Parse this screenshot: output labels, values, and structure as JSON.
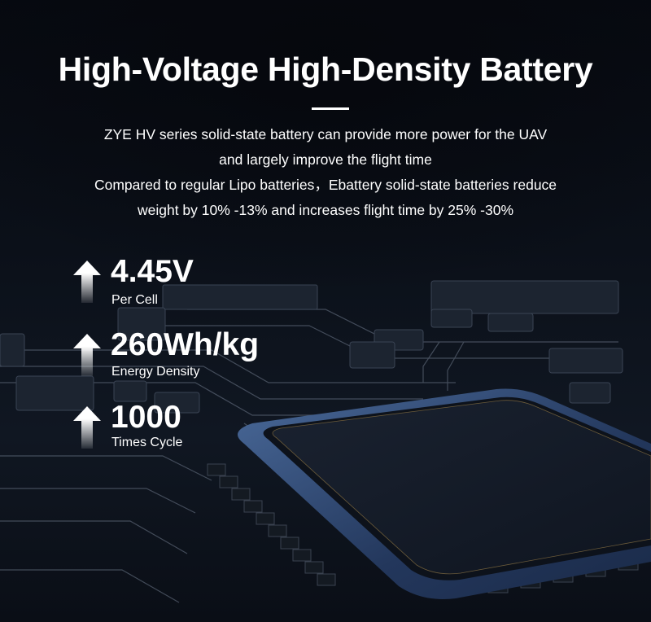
{
  "title": "High-Voltage High-Density Battery",
  "description": [
    "ZYE HV series solid-state battery can provide more power for the UAV",
    "and largely improve the flight time",
    "Compared to regular Lipo batteries，Ebattery solid-state batteries reduce",
    "weight by 10% -13% and increases flight time by 25% -30%"
  ],
  "specs": [
    {
      "value": "4.45V",
      "label": "Per Cell",
      "icon": "arrow-up-icon"
    },
    {
      "value": "260Wh/kg",
      "label": "Energy Density",
      "icon": "arrow-up-icon"
    },
    {
      "value": "1000",
      "label": "Times Cycle",
      "icon": "arrow-up-icon"
    }
  ],
  "colors": {
    "background": "#0a0e16",
    "text": "#ffffff",
    "chip_edge": "#3a5a8c"
  }
}
